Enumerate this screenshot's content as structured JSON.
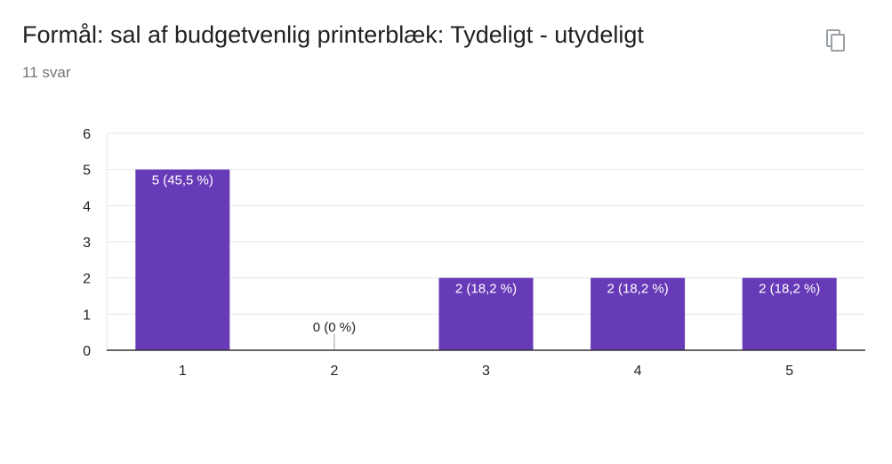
{
  "header": {
    "title": "Formål: sal af budgetvenlig printerblæk: Tydeligt - utydeligt",
    "responses": "11 svar"
  },
  "icons": {
    "copy": "copy-icon"
  },
  "colors": {
    "bar": "#673ab7",
    "grid": "#e6e6e6",
    "axis": "#333333",
    "label_inside": "#ffffff",
    "label_outside": "#222222"
  },
  "chart_data": {
    "type": "bar",
    "categories": [
      "1",
      "2",
      "3",
      "4",
      "5"
    ],
    "values": [
      5,
      0,
      2,
      2,
      2
    ],
    "data_labels": [
      "5 (45,5 %)",
      "0 (0 %)",
      "2 (18,2 %)",
      "2 (18,2 %)",
      "2 (18,2 %)"
    ],
    "yticks": [
      0,
      1,
      2,
      3,
      4,
      5,
      6
    ],
    "ylim": [
      0,
      6
    ],
    "grid": true,
    "legend": "none"
  }
}
